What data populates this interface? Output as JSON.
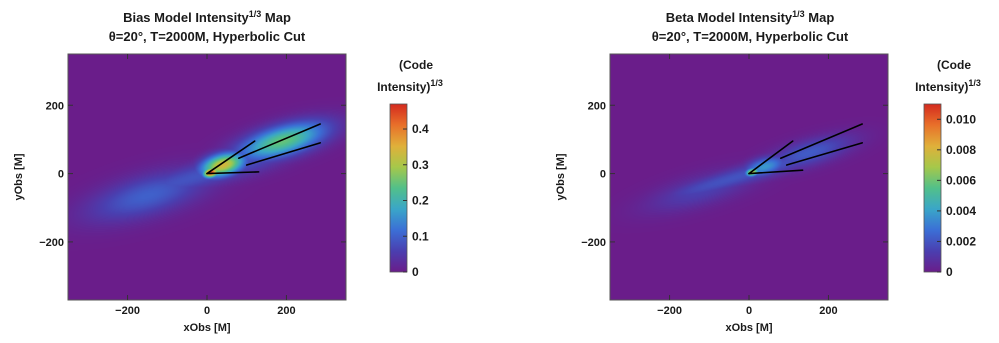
{
  "colors": {
    "background_field": "#6a1d8a",
    "colormap": [
      "#6a1d8a",
      "#4a3fb0",
      "#3b6fd6",
      "#3aa6c8",
      "#52c08a",
      "#a6c84a",
      "#e0b03a",
      "#e8702a",
      "#d42a1e"
    ],
    "line": "#000000"
  },
  "chart_data": [
    {
      "type": "heatmap",
      "title": "Bias Model Intensity",
      "title_exponent": "1/3",
      "title_suffix": " Map",
      "subtitle": "θ=20°, T=2000M, Hyperbolic Cut",
      "xlabel": "xObs [M]",
      "ylabel": "yObs [M]",
      "xlim": [
        -350,
        350
      ],
      "ylim": [
        -370,
        350
      ],
      "xticks": [
        -200,
        0,
        200
      ],
      "yticks": [
        200,
        0,
        -200
      ],
      "xtick_labels": [
        "−200",
        "0",
        "200"
      ],
      "ytick_labels": [
        "200",
        "0",
        "−200"
      ],
      "colorbar": {
        "label_line1": "(Code",
        "label_line2": "Intensity)",
        "label_exponent": "1/3",
        "range": [
          0,
          0.47
        ],
        "ticks": [
          0.4,
          0.3,
          0.2,
          0.1,
          0
        ],
        "tick_labels": [
          "0.4",
          "0.3",
          "0.2",
          "0.1",
          "0"
        ]
      },
      "lines": [
        [
          [
            0,
            0
          ],
          [
            130,
            5
          ]
        ],
        [
          [
            0,
            0
          ],
          [
            120,
            95
          ]
        ],
        [
          [
            80,
            45
          ],
          [
            285,
            145
          ]
        ],
        [
          [
            100,
            25
          ],
          [
            285,
            90
          ]
        ]
      ],
      "jet": {
        "axis_angle_deg": 19,
        "half_width": 28,
        "length_pos": 270,
        "length_neg": 280
      },
      "blobs": [
        {
          "x": 10,
          "y": 3,
          "sx": 14,
          "sy": 10,
          "v": 0.45
        },
        {
          "x": 40,
          "y": 25,
          "sx": 40,
          "sy": 22,
          "v": 0.34
        },
        {
          "x": 190,
          "y": 95,
          "sx": 80,
          "sy": 30,
          "v": 0.25
        },
        {
          "x": -150,
          "y": -65,
          "sx": 110,
          "sy": 40,
          "v": 0.1
        }
      ]
    },
    {
      "type": "heatmap",
      "title": "Beta Model Intensity",
      "title_exponent": "1/3",
      "title_suffix": " Map",
      "subtitle": "θ=20°, T=2000M, Hyperbolic Cut",
      "xlabel": "xObs [M]",
      "ylabel": "yObs [M]",
      "xlim": [
        -350,
        350
      ],
      "ylim": [
        -370,
        350
      ],
      "xticks": [
        -200,
        0,
        200
      ],
      "yticks": [
        200,
        0,
        -200
      ],
      "xtick_labels": [
        "−200",
        "0",
        "200"
      ],
      "ytick_labels": [
        "200",
        "0",
        "−200"
      ],
      "colorbar": {
        "label_line1": "(Code",
        "label_line2": "Intensity)",
        "label_exponent": "1/3",
        "range": [
          0,
          0.011
        ],
        "ticks": [
          0.01,
          0.008,
          0.006,
          0.004,
          0.002,
          0
        ],
        "tick_labels": [
          "0.010",
          "0.008",
          "0.006",
          "0.004",
          "0.002",
          "0"
        ]
      },
      "lines": [
        [
          [
            0,
            0
          ],
          [
            135,
            10
          ]
        ],
        [
          [
            0,
            0
          ],
          [
            110,
            95
          ]
        ],
        [
          [
            80,
            45
          ],
          [
            285,
            145
          ]
        ],
        [
          [
            95,
            25
          ],
          [
            285,
            90
          ]
        ]
      ],
      "jet": {
        "axis_angle_deg": 19,
        "half_width": 20,
        "length_pos": 230,
        "length_neg": 260
      },
      "blobs": [
        {
          "x": 8,
          "y": 4,
          "sx": 12,
          "sy": 8,
          "v": 0.0075
        },
        {
          "x": 40,
          "y": 20,
          "sx": 38,
          "sy": 18,
          "v": 0.0038
        },
        {
          "x": 150,
          "y": 60,
          "sx": 80,
          "sy": 25,
          "v": 0.0022
        },
        {
          "x": -120,
          "y": -50,
          "sx": 100,
          "sy": 30,
          "v": 0.0014
        }
      ]
    }
  ]
}
